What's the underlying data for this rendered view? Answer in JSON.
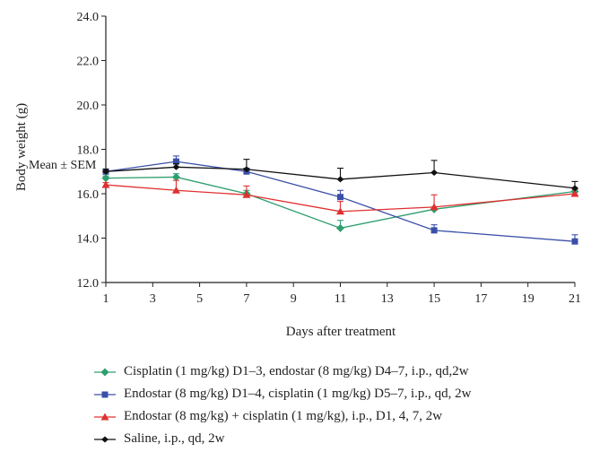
{
  "chart_data": {
    "type": "line",
    "title": "",
    "xlabel": "Days after treatment",
    "ylabel": "Body weight (g)",
    "annotation": "Mean ± SEM",
    "x_ticks": [
      1,
      3,
      5,
      7,
      9,
      11,
      13,
      15,
      17,
      19,
      21
    ],
    "y_ticks": [
      "12.0",
      "14.0",
      "16.0",
      "18.0",
      "20.0",
      "22.0",
      "24.0"
    ],
    "xlim": [
      1,
      21
    ],
    "ylim": [
      12,
      24
    ],
    "grid": false,
    "legend_position": "bottom",
    "series": [
      {
        "name": "Cisplatin (1 mg/kg) D1–3, endostar (8 mg/kg) D4–7, i.p., qd,2w",
        "color": "#2e9e6e",
        "marker": "diamond",
        "x": [
          1,
          4,
          7,
          11,
          15,
          21
        ],
        "values": [
          16.7,
          16.75,
          16.0,
          14.45,
          15.3,
          16.1
        ],
        "errors": [
          0.1,
          0.15,
          0.15,
          0.35,
          0.1,
          0.15
        ]
      },
      {
        "name": "Endostar (8 mg/kg) D1–4, cisplatin (1 mg/kg) D5–7, i.p., qd, 2w",
        "color": "#3a4fa8",
        "marker": "square",
        "x": [
          1,
          4,
          7,
          11,
          15,
          21
        ],
        "values": [
          17.0,
          17.45,
          17.0,
          15.85,
          14.35,
          13.85
        ],
        "errors": [
          0.1,
          0.25,
          0.15,
          0.3,
          0.25,
          0.3
        ]
      },
      {
        "name": "Endostar (8 mg/kg) + cisplatin (1 mg/kg), i.p., D1, 4, 7, 2w",
        "color": "#e03030",
        "marker": "triangle",
        "x": [
          1,
          4,
          7,
          11,
          15,
          21
        ],
        "values": [
          16.4,
          16.15,
          15.95,
          15.2,
          15.4,
          16.0
        ],
        "errors": [
          0.1,
          0.45,
          0.4,
          0.45,
          0.55,
          0.2
        ]
      },
      {
        "name": "Saline, i.p., qd, 2w",
        "color": "#111111",
        "marker": "plus",
        "x": [
          1,
          4,
          7,
          11,
          15,
          21
        ],
        "values": [
          17.0,
          17.2,
          17.1,
          16.65,
          16.95,
          16.25
        ],
        "errors": [
          0.1,
          0.15,
          0.45,
          0.5,
          0.55,
          0.3
        ]
      }
    ]
  }
}
